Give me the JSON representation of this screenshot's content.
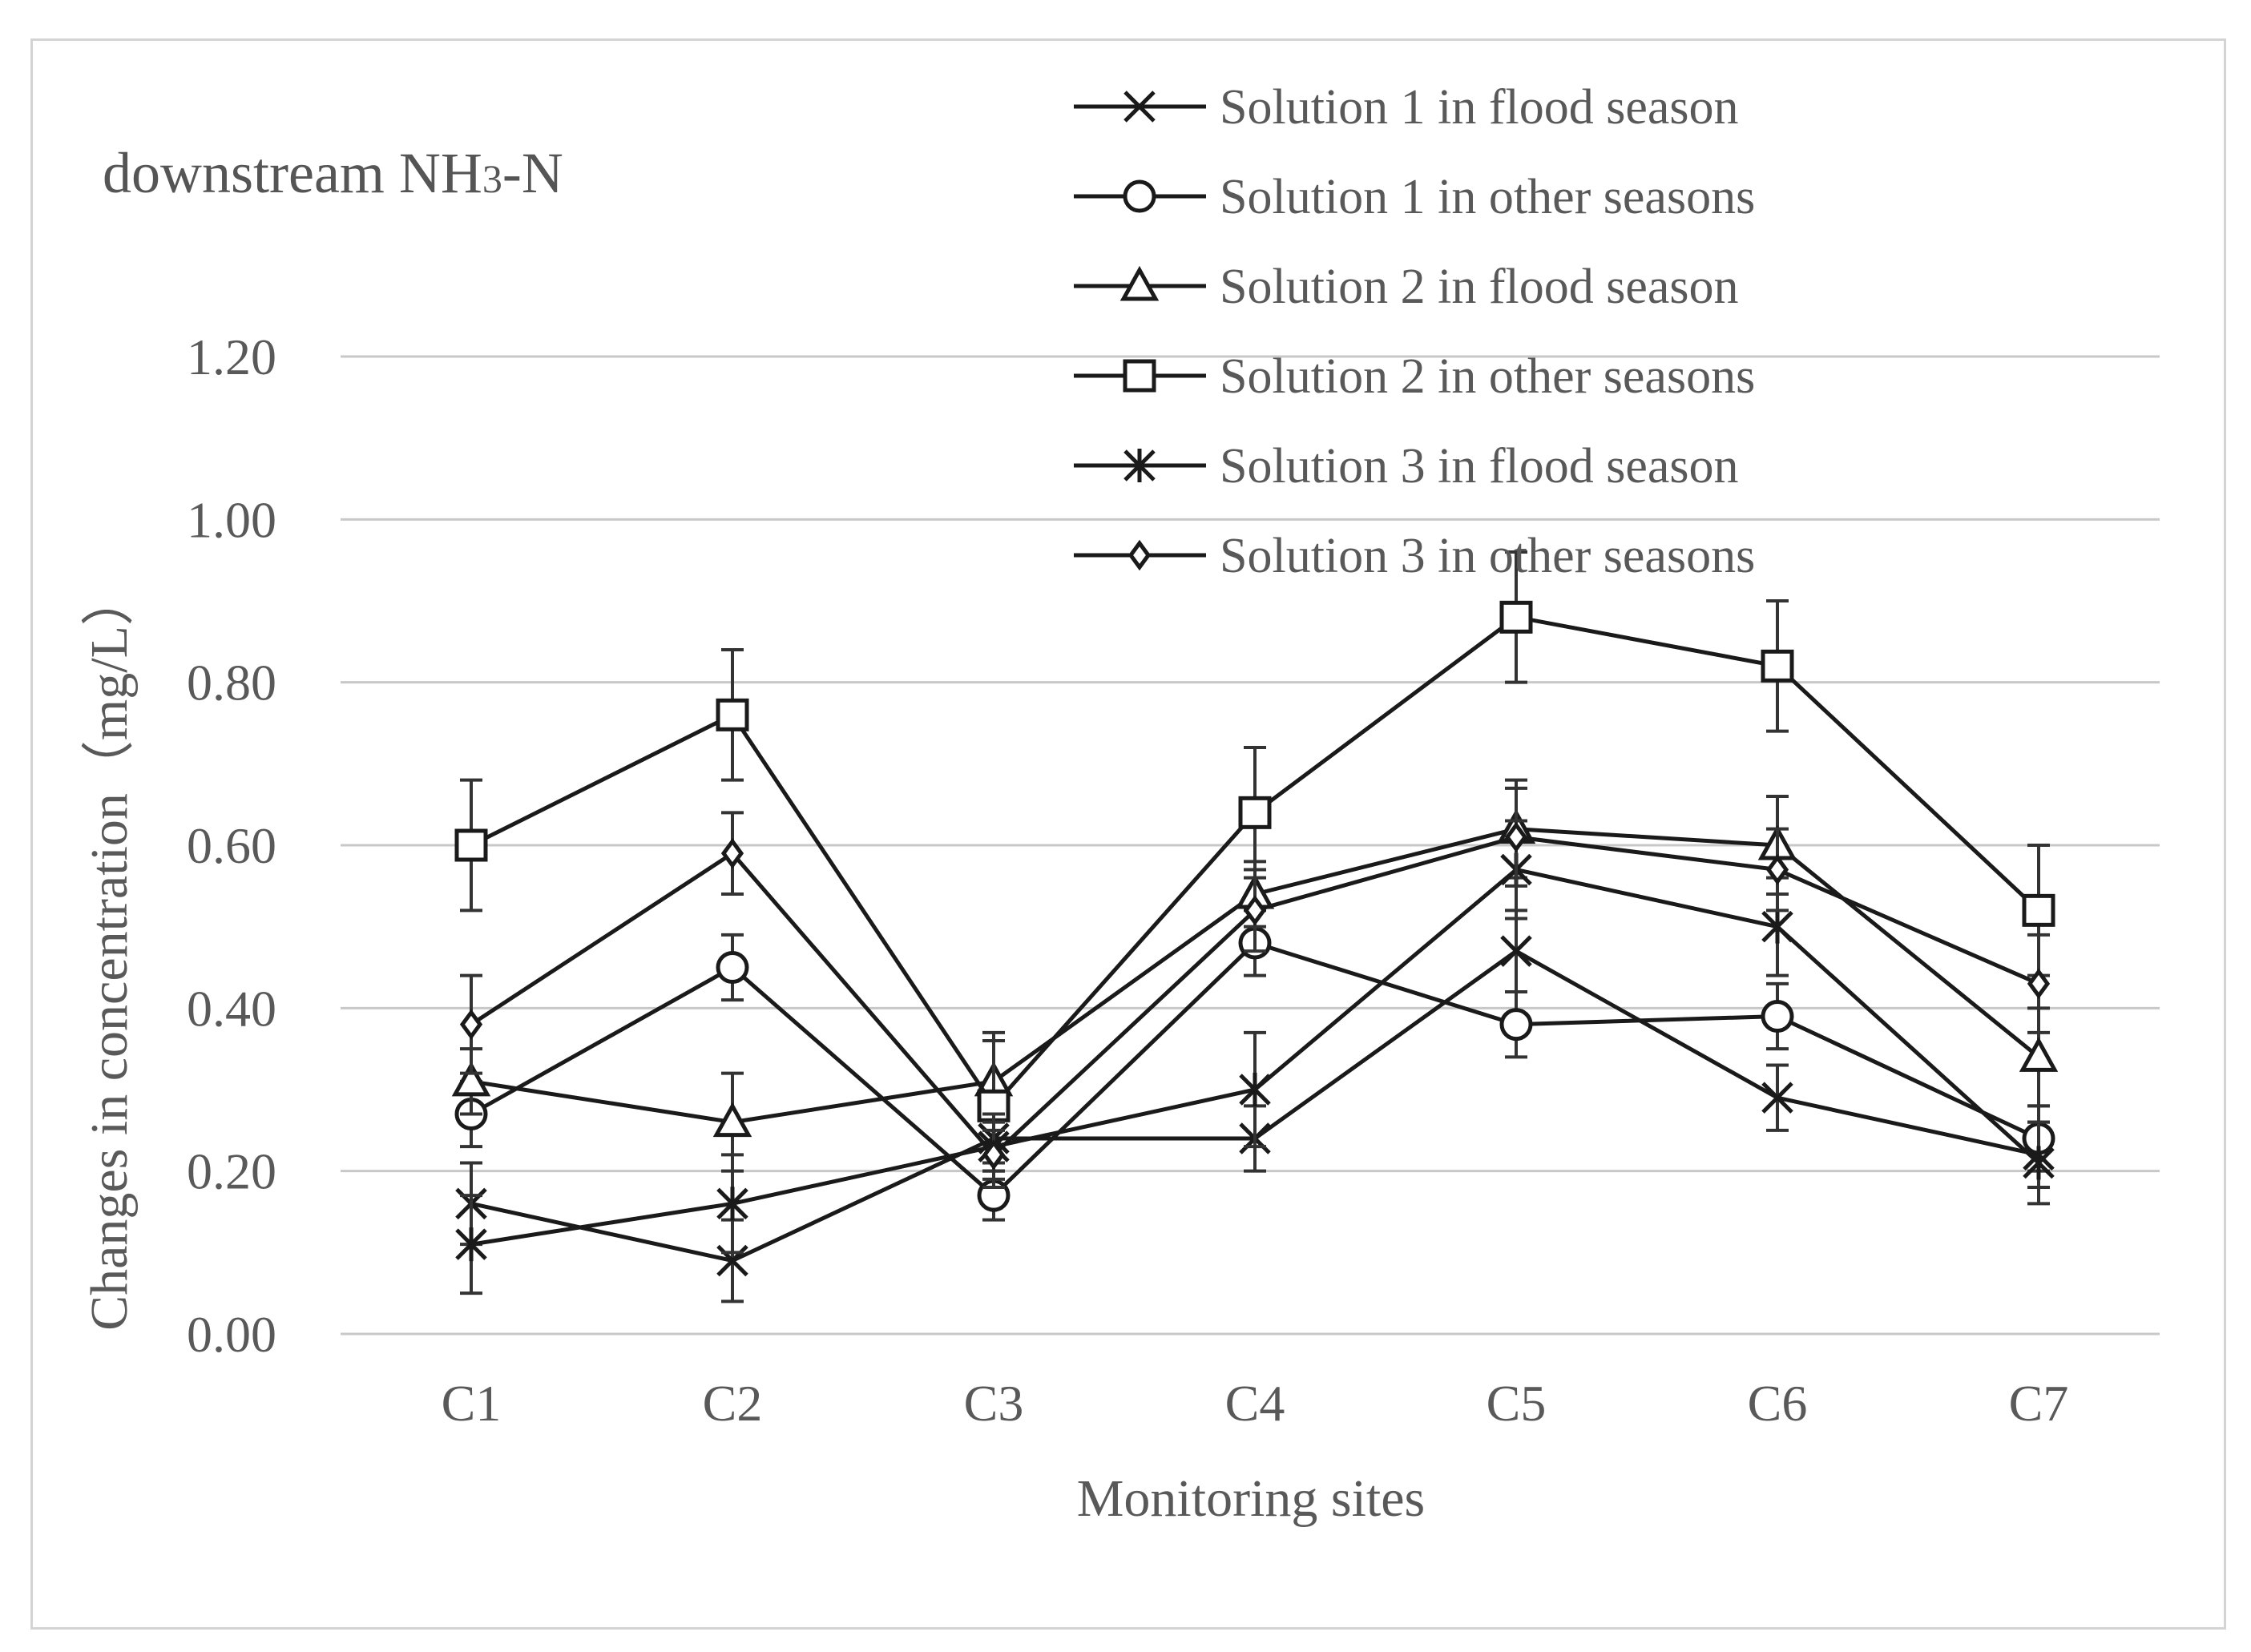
{
  "chart_data": {
    "type": "line",
    "title": "downstream  NH3-N",
    "title_main": "downstream  NH",
    "title_sub": "3",
    "title_tail": "-N",
    "xlabel": "Monitoring sites",
    "ylabel": "Changes in concentration（mg/L）",
    "categories": [
      "C1",
      "C2",
      "C3",
      "C4",
      "C5",
      "C6",
      "C7"
    ],
    "ylim": [
      0,
      1.2
    ],
    "yticks": [
      "0.00",
      "0.20",
      "0.40",
      "0.60",
      "0.80",
      "1.00",
      "1.20"
    ],
    "ytick_values": [
      0,
      0.2,
      0.4,
      0.6,
      0.8,
      1.0,
      1.2
    ],
    "grid": true,
    "legend_position": "top-right",
    "series": [
      {
        "name": "Solution 1 in flood season",
        "marker": "x",
        "values": [
          0.16,
          0.09,
          0.24,
          0.24,
          0.47,
          0.29,
          0.22
        ],
        "errors": [
          0.05,
          0.05,
          0.03,
          0.04,
          0.05,
          0.04,
          0.04
        ]
      },
      {
        "name": "Solution 1 in other seasons",
        "marker": "circle",
        "values": [
          0.27,
          0.45,
          0.17,
          0.48,
          0.38,
          0.39,
          0.24
        ],
        "errors": [
          0.04,
          0.04,
          0.03,
          0.04,
          0.04,
          0.04,
          0.04
        ]
      },
      {
        "name": "Solution 2 in flood season",
        "marker": "triangle",
        "values": [
          0.31,
          0.26,
          0.31,
          0.54,
          0.62,
          0.6,
          0.34
        ],
        "errors": [
          0.04,
          0.06,
          0.06,
          0.04,
          0.06,
          0.06,
          0.06
        ]
      },
      {
        "name": "Solution 2 in other seasons",
        "marker": "square",
        "values": [
          0.6,
          0.76,
          0.28,
          0.64,
          0.88,
          0.82,
          0.52
        ],
        "errors": [
          0.08,
          0.08,
          0.08,
          0.08,
          0.08,
          0.08,
          0.08
        ]
      },
      {
        "name": "Solution 3 in flood season",
        "marker": "asterisk",
        "values": [
          0.11,
          0.16,
          0.23,
          0.3,
          0.57,
          0.5,
          0.21
        ],
        "errors": [
          0.06,
          0.06,
          0.04,
          0.07,
          0.06,
          0.06,
          0.05
        ]
      },
      {
        "name": "Solution 3 in other seasons",
        "marker": "diamond",
        "values": [
          0.38,
          0.59,
          0.22,
          0.52,
          0.61,
          0.57,
          0.43
        ],
        "errors": [
          0.06,
          0.05,
          0.04,
          0.05,
          0.06,
          0.05,
          0.06
        ]
      }
    ]
  }
}
